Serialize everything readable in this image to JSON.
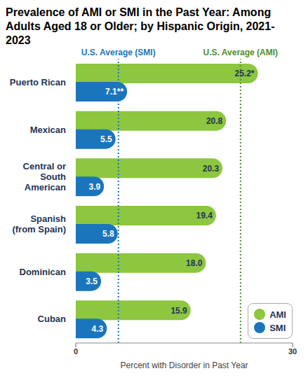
{
  "chart_data": {
    "type": "bar",
    "title": "Prevalence of AMI or SMI in the Past Year: Among Adults Aged 18 or Older; by Hispanic Origin, 2021-2023",
    "orientation": "horizontal",
    "categories": [
      "Puerto Rican",
      "Mexican",
      "Central or South American",
      "Spanish (from Spain)",
      "Dominican",
      "Cuban"
    ],
    "series": [
      {
        "name": "AMI",
        "color": "#8dc63f",
        "values": [
          25.2,
          20.8,
          20.3,
          19.4,
          18.0,
          15.9
        ],
        "value_labels": [
          "25.2*",
          "20.8",
          "20.3",
          "19.4",
          "18.0",
          "15.9"
        ]
      },
      {
        "name": "SMI",
        "color": "#1b75bc",
        "values": [
          7.1,
          5.5,
          3.9,
          5.8,
          3.5,
          4.3
        ],
        "value_labels": [
          "7.1**",
          "5.5",
          "3.9",
          "5.8",
          "3.5",
          "4.3"
        ]
      }
    ],
    "x_label": "Percent with Disorder in Past Year",
    "xlim": [
      0,
      30
    ],
    "xticks": [
      0,
      30
    ],
    "reference_lines": [
      {
        "label": "U.S. Average (SMI)",
        "value": 5.9,
        "color": "#1b75bc"
      },
      {
        "label": "U.S. Average (AMI)",
        "value": 22.8,
        "color": "#4e8f2a"
      }
    ],
    "legend": "lower right",
    "data_labels": true,
    "grid": false
  }
}
